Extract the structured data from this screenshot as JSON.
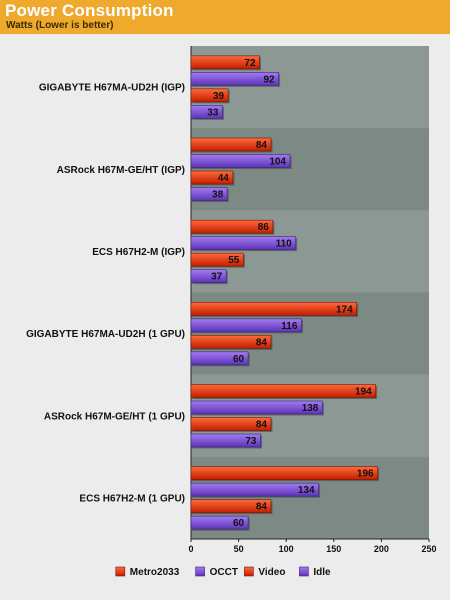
{
  "header": {
    "title": "Power Consumption",
    "subtitle": "Watts (Lower is better)",
    "accent": "#efa92c"
  },
  "chart_data": {
    "type": "bar",
    "orientation": "horizontal",
    "title": "Power Consumption",
    "subtitle": "Watts (Lower is better)",
    "xlabel": "",
    "ylabel": "",
    "xlim": [
      0,
      250
    ],
    "ticks": [
      0,
      50,
      100,
      150,
      200,
      250
    ],
    "grid": false,
    "legend_position": "bottom",
    "categories": [
      "GIGABYTE H67MA-UD2H (IGP)",
      "ASRock H67M-GE/HT (IGP)",
      "ECS H67H2-M (IGP)",
      "GIGABYTE H67MA-UD2H (1 GPU)",
      "ASRock H67M-GE/HT (1 GPU)",
      "ECS H67H2-M (1 GPU)"
    ],
    "series": [
      {
        "name": "Metro2033",
        "color": "#cc2200",
        "values": [
          72,
          84,
          86,
          174,
          194,
          196
        ]
      },
      {
        "name": "OCCT",
        "color": "#7744cc",
        "values": [
          92,
          104,
          110,
          116,
          138,
          134
        ]
      },
      {
        "name": "Video",
        "color": "#cc2200",
        "values": [
          39,
          44,
          55,
          84,
          84,
          84
        ]
      },
      {
        "name": "Idle",
        "color": "#7744cc",
        "values": [
          33,
          38,
          37,
          60,
          73,
          60
        ]
      }
    ]
  }
}
